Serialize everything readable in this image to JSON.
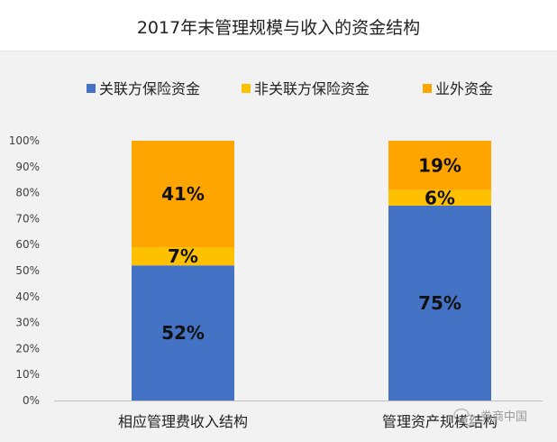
{
  "chart_data": {
    "type": "bar",
    "stacked": true,
    "title": "2017年末管理规模与收入的资金结构",
    "categories": [
      "相应管理费收入结构",
      "管理资产规模结构"
    ],
    "series": [
      {
        "name": "关联方保险资金",
        "values": [
          52,
          75
        ],
        "labels": [
          "52%",
          "75%"
        ],
        "color": "#4472C4"
      },
      {
        "name": "非关联方保险资金",
        "values": [
          7,
          6
        ],
        "labels": [
          "7%",
          "6%"
        ],
        "color": "#FFC000"
      },
      {
        "name": "业外资金",
        "values": [
          41,
          19
        ],
        "labels": [
          "41%",
          "19%"
        ],
        "color": "#FFA500"
      }
    ],
    "yticks": [
      "0%",
      "10%",
      "20%",
      "30%",
      "40%",
      "50%",
      "60%",
      "70%",
      "80%",
      "90%",
      "100%"
    ],
    "ylim": [
      0,
      100
    ],
    "grid": false,
    "legend": "top"
  },
  "watermark": "券商中国",
  "watermark_icon": "wechat-icon"
}
